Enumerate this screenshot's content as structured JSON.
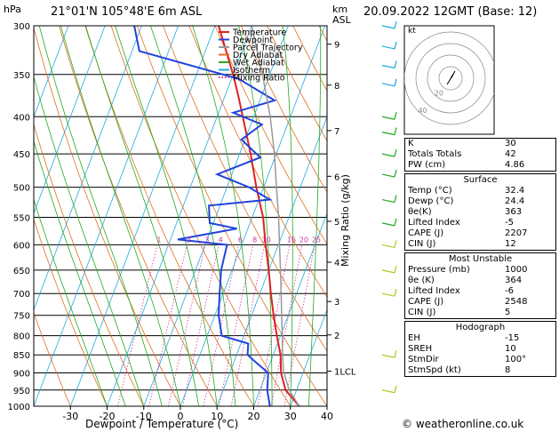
{
  "header": {
    "hpa_label": "hPa",
    "location": "21°01'N 105°48'E 6m ASL",
    "km_label": "km",
    "asl_label": "ASL",
    "datetime": "20.09.2022 12GMT (Base: 12)"
  },
  "chart_data": {
    "type": "line",
    "title": "",
    "xlabel": "Dewpoint / Temperature (°C)",
    "ylabel": "hPa",
    "right_axis_label": "Mixing Ratio (g/kg)",
    "pressure_levels": [
      300,
      350,
      400,
      450,
      500,
      550,
      600,
      650,
      700,
      750,
      800,
      850,
      900,
      950,
      1000
    ],
    "x_ticks": [
      -30,
      -20,
      -10,
      0,
      10,
      20,
      30,
      40
    ],
    "xlim": [
      -40,
      40
    ],
    "ylim": [
      1000,
      300
    ],
    "y_scale": "log",
    "altitude_km_ticks": [
      {
        "label": "9",
        "p": 318
      },
      {
        "label": "8",
        "p": 362
      },
      {
        "label": "7",
        "p": 418
      },
      {
        "label": "6",
        "p": 483
      },
      {
        "label": "5",
        "p": 557
      },
      {
        "label": "4",
        "p": 634
      },
      {
        "label": "3",
        "p": 718
      },
      {
        "label": "2",
        "p": 798
      },
      {
        "label": "1LCL",
        "p": 895
      }
    ],
    "mixing_ratio_labels": [
      "1",
      "2",
      "3",
      "4",
      "6",
      "8",
      "10",
      "16",
      "20",
      "25"
    ],
    "mixing_ratio_values": [
      1,
      2,
      3,
      4,
      6,
      8,
      10,
      16,
      20,
      25
    ],
    "legend": {
      "placement": "top-right",
      "entries": [
        {
          "name": "Temperature",
          "color": "#dd2222"
        },
        {
          "name": "Dewpoint",
          "color": "#2244dd"
        },
        {
          "name": "Parcel Trajectory",
          "color": "#999999"
        },
        {
          "name": "Dry Adiabat",
          "color": "#e07020"
        },
        {
          "name": "Wet Adiabat",
          "color": "#22aa22"
        },
        {
          "name": "Isotherm",
          "color": "#22aadd"
        },
        {
          "name": "Mixing Ratio",
          "color": "#cc3399"
        }
      ]
    },
    "series": [
      {
        "name": "Temperature",
        "color": "#dd2222",
        "points": [
          {
            "p": 1000,
            "t": 32.4
          },
          {
            "p": 950,
            "t": 27
          },
          {
            "p": 900,
            "t": 24
          },
          {
            "p": 850,
            "t": 22
          },
          {
            "p": 800,
            "t": 19
          },
          {
            "p": 750,
            "t": 16
          },
          {
            "p": 700,
            "t": 13
          },
          {
            "p": 650,
            "t": 10
          },
          {
            "p": 600,
            "t": 6.5
          },
          {
            "p": 550,
            "t": 3
          },
          {
            "p": 500,
            "t": -2
          },
          {
            "p": 450,
            "t": -7
          },
          {
            "p": 400,
            "t": -13
          },
          {
            "p": 370,
            "t": -17
          },
          {
            "p": 350,
            "t": -20
          },
          {
            "p": 300,
            "t": -29
          }
        ]
      },
      {
        "name": "Dewpoint",
        "color": "#2244dd",
        "points": [
          {
            "p": 1000,
            "t": 24.4
          },
          {
            "p": 950,
            "t": 22
          },
          {
            "p": 900,
            "t": 20.5
          },
          {
            "p": 870,
            "t": 16
          },
          {
            "p": 850,
            "t": 13
          },
          {
            "p": 820,
            "t": 12
          },
          {
            "p": 800,
            "t": 4
          },
          {
            "p": 750,
            "t": 1
          },
          {
            "p": 700,
            "t": -1
          },
          {
            "p": 650,
            "t": -3
          },
          {
            "p": 600,
            "t": -4
          },
          {
            "p": 590,
            "t": -18
          },
          {
            "p": 570,
            "t": -3
          },
          {
            "p": 560,
            "t": -11
          },
          {
            "p": 530,
            "t": -13
          },
          {
            "p": 520,
            "t": 3
          },
          {
            "p": 500,
            "t": -4
          },
          {
            "p": 480,
            "t": -14
          },
          {
            "p": 455,
            "t": -4
          },
          {
            "p": 430,
            "t": -11
          },
          {
            "p": 410,
            "t": -7
          },
          {
            "p": 395,
            "t": -16
          },
          {
            "p": 380,
            "t": -6
          },
          {
            "p": 355,
            "t": -18
          },
          {
            "p": 325,
            "t": -48
          },
          {
            "p": 300,
            "t": -52
          }
        ]
      },
      {
        "name": "Parcel Trajectory",
        "color": "#999999",
        "points": [
          {
            "p": 1000,
            "t": 32.4
          },
          {
            "p": 950,
            "t": 28
          },
          {
            "p": 895,
            "t": 24.5
          },
          {
            "p": 850,
            "t": 22.5
          },
          {
            "p": 800,
            "t": 20.5
          },
          {
            "p": 750,
            "t": 18.2
          },
          {
            "p": 700,
            "t": 15.8
          },
          {
            "p": 650,
            "t": 13.2
          },
          {
            "p": 600,
            "t": 10.3
          },
          {
            "p": 550,
            "t": 7.2
          },
          {
            "p": 500,
            "t": 3.5
          },
          {
            "p": 450,
            "t": -0.5
          },
          {
            "p": 400,
            "t": -5.5
          },
          {
            "p": 350,
            "t": -12
          },
          {
            "p": 300,
            "t": -20
          }
        ]
      }
    ],
    "wind_barbs_note": "wind barbs along right edge at each level"
  },
  "hodograph": {
    "unit": "kt",
    "ring_labels": [
      "40",
      "20"
    ]
  },
  "indices": {
    "rows": [
      {
        "label": "K",
        "value": "30"
      },
      {
        "label": "Totals Totals",
        "value": "42"
      },
      {
        "label": "PW (cm)",
        "value": "4.86"
      }
    ]
  },
  "surface": {
    "title": "Surface",
    "rows": [
      {
        "label": "Temp (°C)",
        "value": "32.4"
      },
      {
        "label": "Dewp (°C)",
        "value": "24.4"
      },
      {
        "label": "θe(K)",
        "value": "363"
      },
      {
        "label": "Lifted Index",
        "value": "-5"
      },
      {
        "label": "CAPE (J)",
        "value": "2207"
      },
      {
        "label": "CIN (J)",
        "value": "12"
      }
    ]
  },
  "most_unstable": {
    "title": "Most Unstable",
    "rows": [
      {
        "label": "Pressure (mb)",
        "value": "1000"
      },
      {
        "label": "θe (K)",
        "value": "364"
      },
      {
        "label": "Lifted Index",
        "value": "-6"
      },
      {
        "label": "CAPE (J)",
        "value": "2548"
      },
      {
        "label": "CIN (J)",
        "value": "5"
      }
    ]
  },
  "hodograph_table": {
    "title": "Hodograph",
    "rows": [
      {
        "label": "EH",
        "value": "-15"
      },
      {
        "label": "SREH",
        "value": "10"
      },
      {
        "label": "StmDir",
        "value": "100°"
      },
      {
        "label": "StmSpd (kt)",
        "value": "8"
      }
    ]
  },
  "footer": {
    "copyright": "© weatheronline.co.uk"
  }
}
